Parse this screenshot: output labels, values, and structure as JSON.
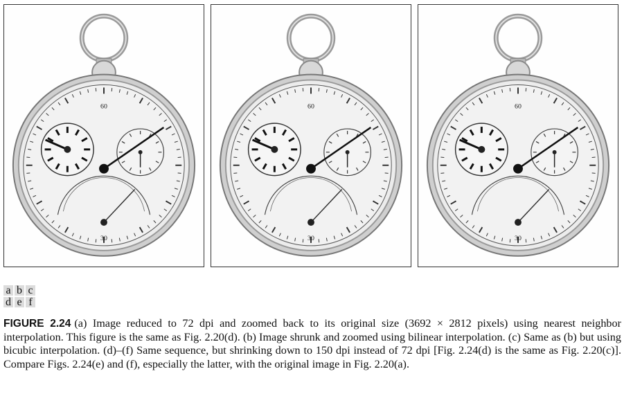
{
  "panel_labels": {
    "row1": [
      "a",
      "b",
      "c"
    ],
    "row2": [
      "d",
      "e",
      "f"
    ]
  },
  "dial": {
    "top_number": "60",
    "bottom_number": "30"
  },
  "caption": {
    "figure_label": "FIGURE 2.24",
    "text": "(a) Image reduced to 72 dpi and zoomed back to its original size (3692 × 2812 pixels) using nearest neighbor interpolation. This figure is the same as Fig. 2.20(d). (b) Image shrunk and zoomed using bilinear interpolation. (c) Same as (b) but using bicubic interpolation. (d)–(f) Same sequence, but shrinking down to 150 dpi instead of 72 dpi [Fig. 2.24(d) is the same as Fig. 2.20(c)]. Compare Figs. 2.24(e) and (f), especially the latter, with the original image in Fig. 2.20(a)."
  },
  "colors": {
    "border": "#333333",
    "label_bg": "#dcdcdc",
    "dial": "#eeeeee"
  }
}
